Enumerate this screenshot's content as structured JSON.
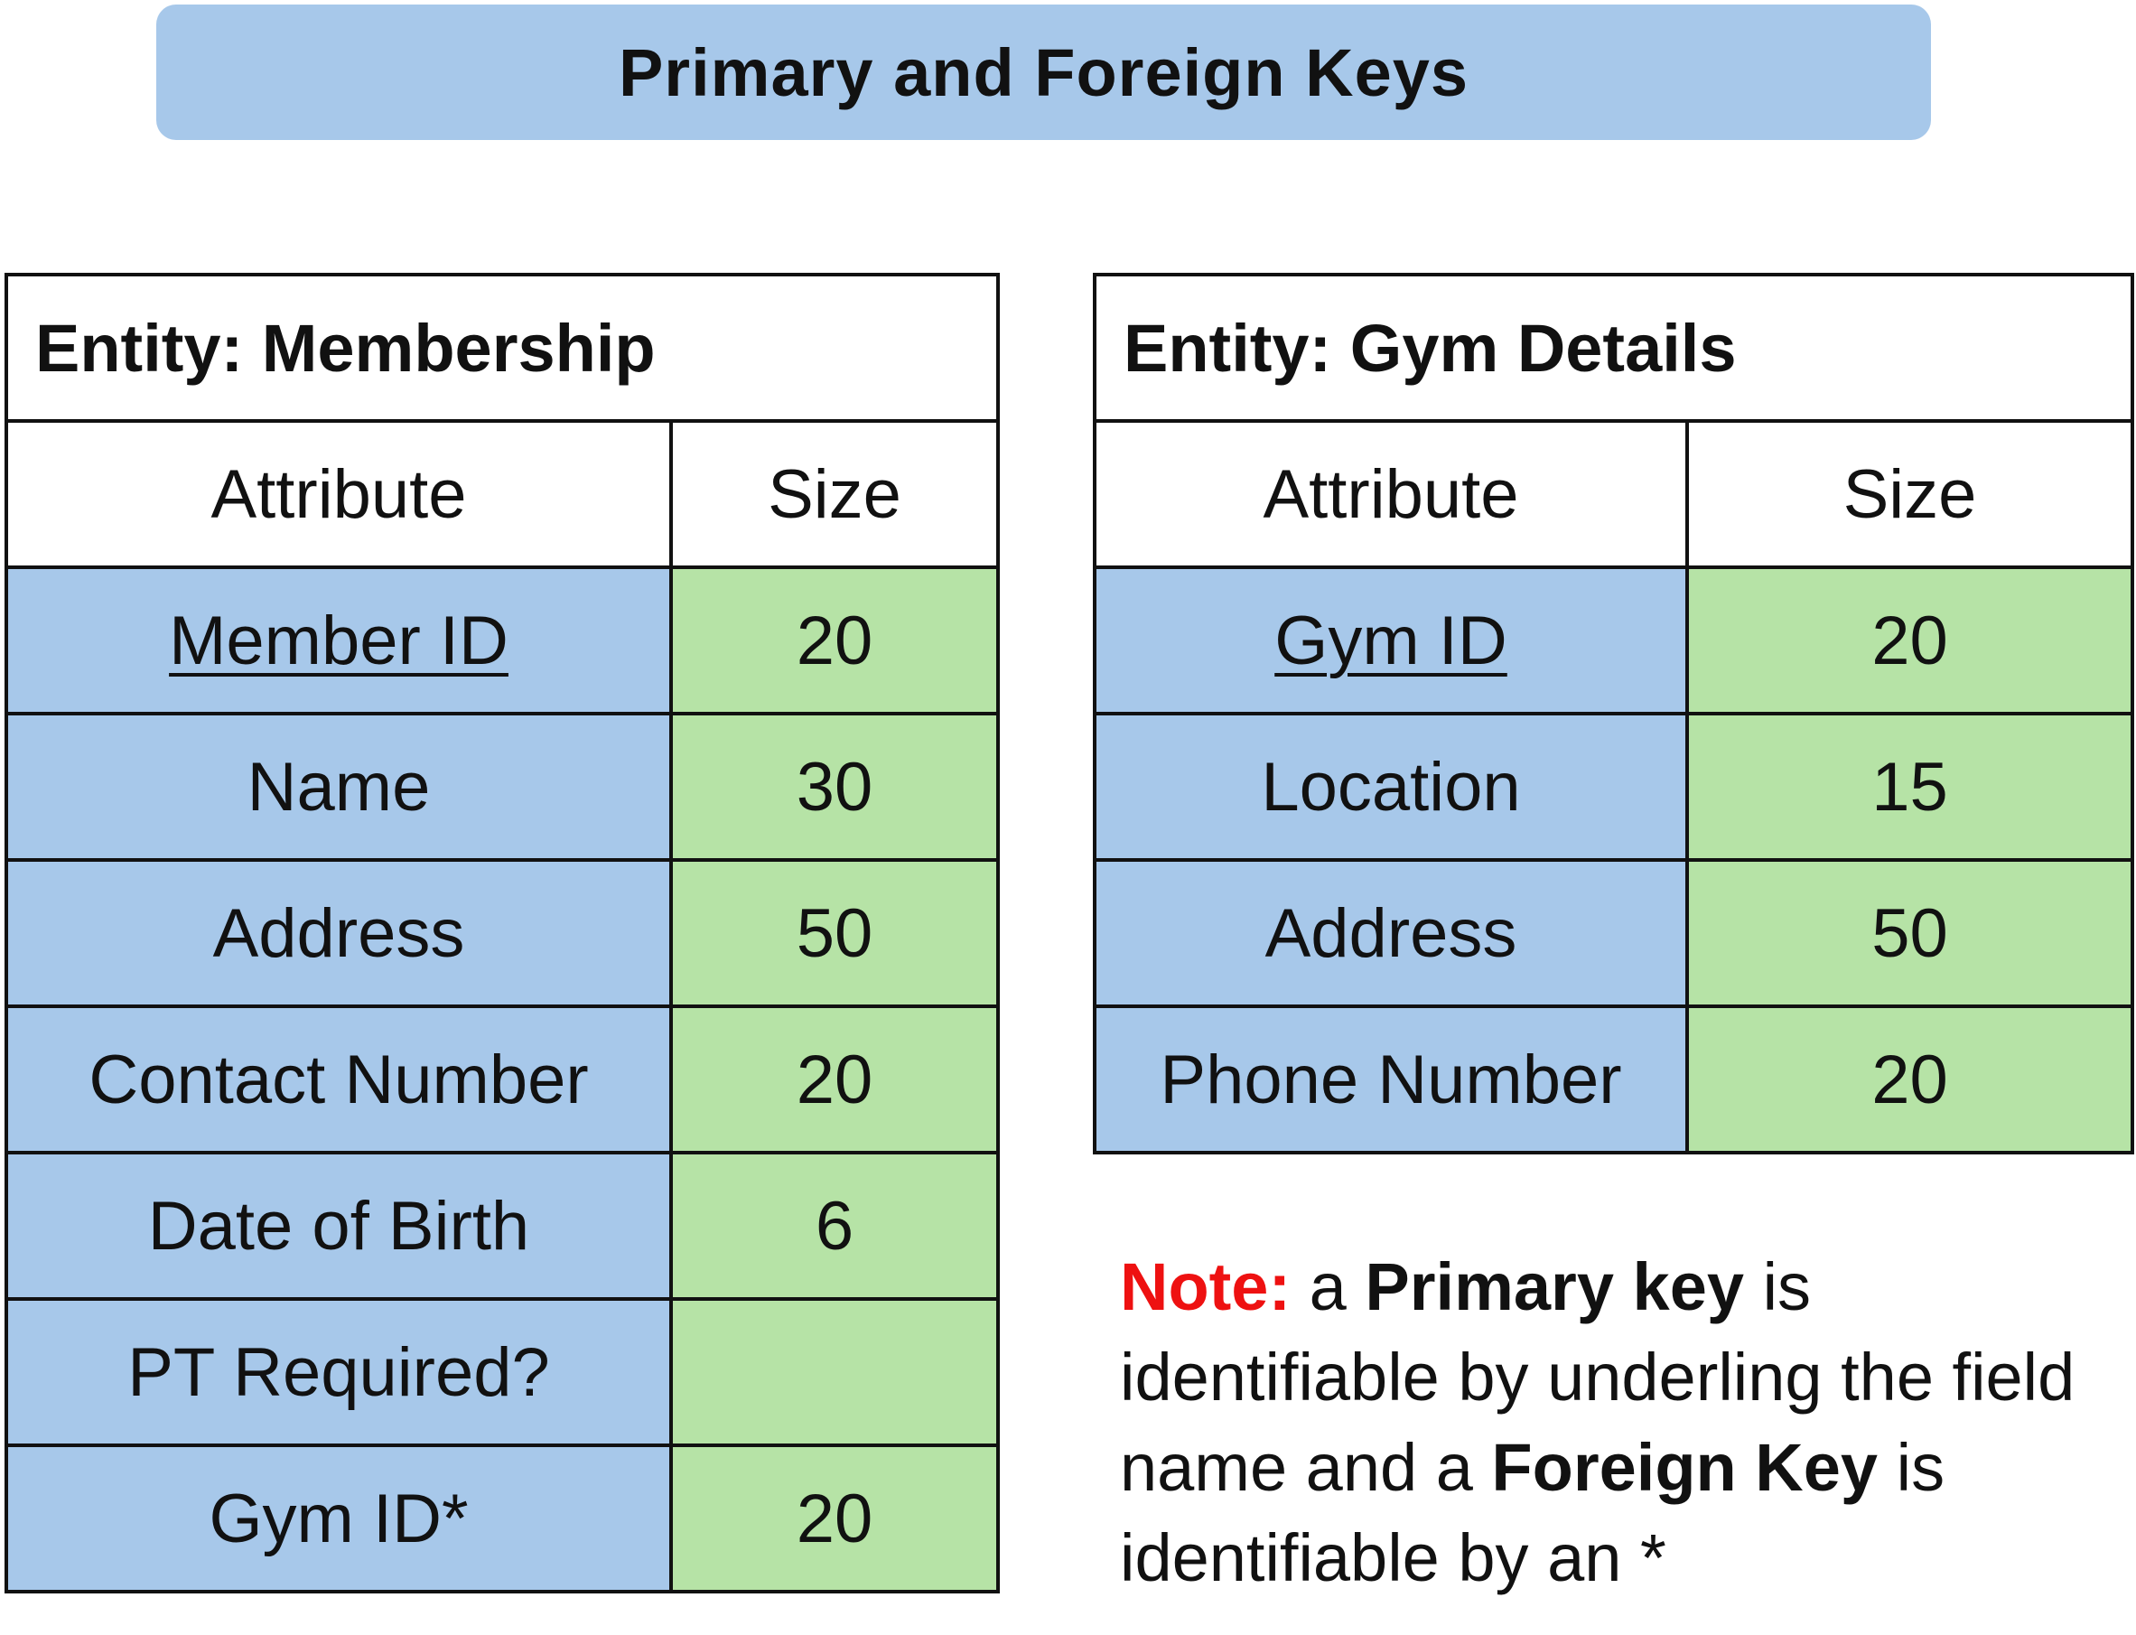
{
  "title": "Primary and Foreign Keys",
  "entities": [
    {
      "title": "Entity: Membership",
      "headers": {
        "attribute": "Attribute",
        "size": "Size"
      },
      "rows": [
        {
          "attribute": "Member ID",
          "size": "20",
          "primary_key": true
        },
        {
          "attribute": "Name",
          "size": "30"
        },
        {
          "attribute": "Address",
          "size": "50"
        },
        {
          "attribute": "Contact Number",
          "size": "20"
        },
        {
          "attribute": "Date of Birth",
          "size": "6"
        },
        {
          "attribute": "PT Required?",
          "size": ""
        },
        {
          "attribute": "Gym ID*",
          "size": "20",
          "foreign_key": true
        }
      ]
    },
    {
      "title": "Entity: Gym Details",
      "headers": {
        "attribute": "Attribute",
        "size": "Size"
      },
      "rows": [
        {
          "attribute": "Gym ID",
          "size": "20",
          "primary_key": true
        },
        {
          "attribute": "Location",
          "size": "15"
        },
        {
          "attribute": "Address",
          "size": "50"
        },
        {
          "attribute": "Phone Number",
          "size": "20"
        }
      ]
    }
  ],
  "note": {
    "label": "Note:",
    "text_1": "a",
    "primary_key_term": "Primary key",
    "text_2": "is identifiable by underling the field name and a",
    "foreign_key_term": "Foreign Key",
    "text_3": "is identifiable by an *"
  },
  "colors": {
    "attribute_fill": "#a7c8ea",
    "size_fill": "#b6e3a6",
    "banner_fill": "#a7c8ea",
    "note_label": "#ee1111"
  }
}
